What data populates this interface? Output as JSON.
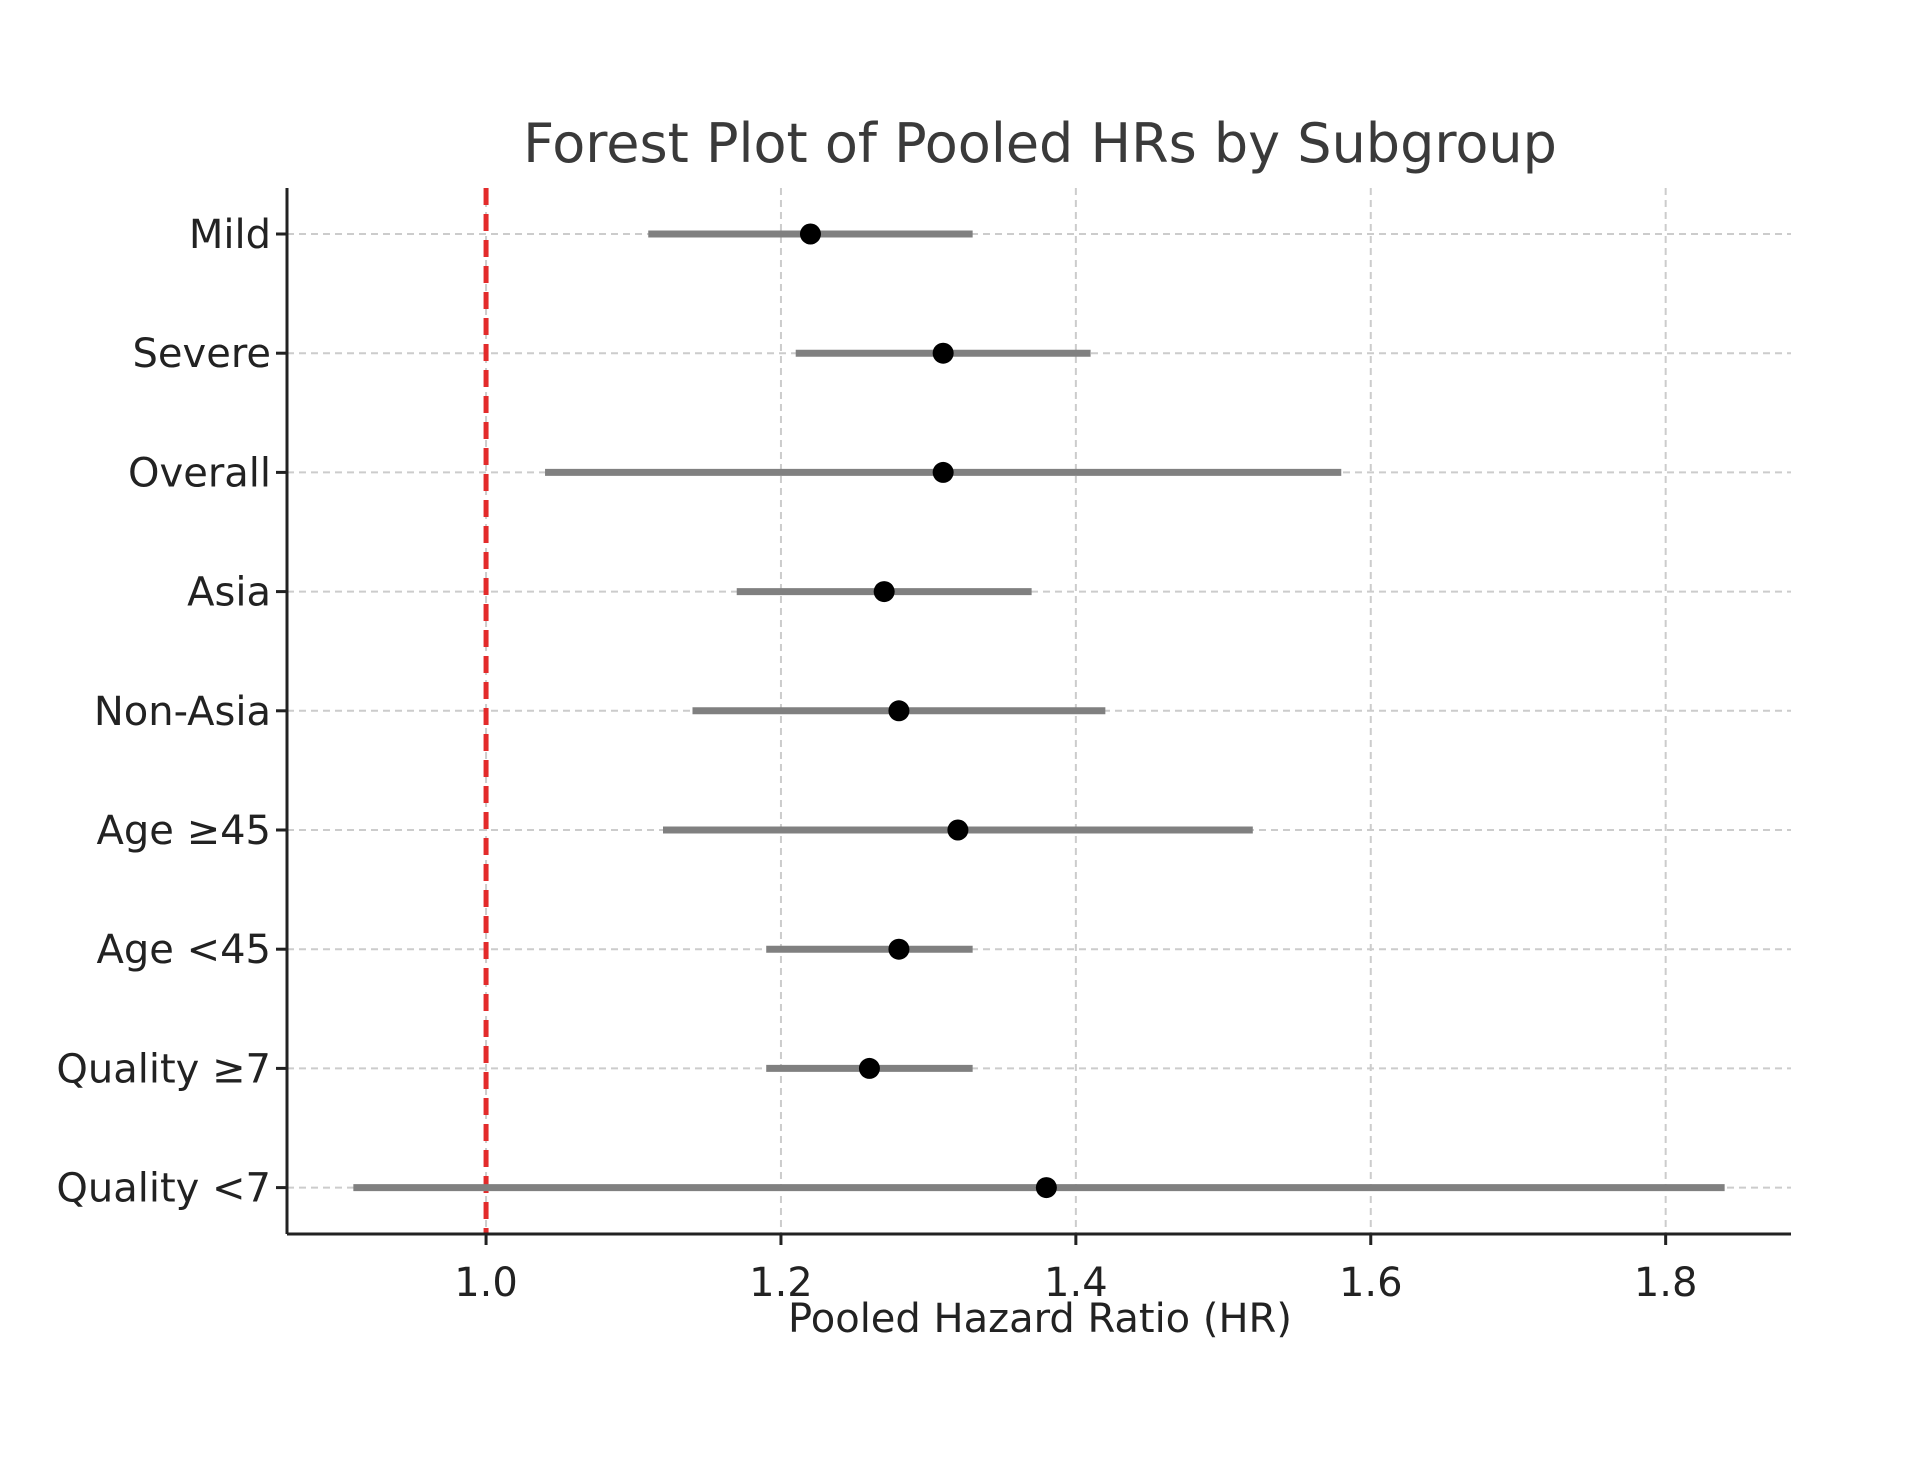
{
  "chart_data": {
    "type": "forest",
    "title": "Forest Plot of Pooled HRs by Subgroup",
    "xlabel": "Pooled Hazard Ratio (HR)",
    "ylabel": "",
    "xlim": [
      0.865,
      1.885
    ],
    "xticks": [
      1.0,
      1.2,
      1.4,
      1.6,
      1.8
    ],
    "xtick_labels": [
      "1.0",
      "1.2",
      "1.4",
      "1.6",
      "1.8"
    ],
    "grid": true,
    "reference_line": {
      "x": 1.0,
      "color": "#e32b2b",
      "style": "dashed"
    },
    "ci_color": "#808080",
    "point_color": "#000000",
    "subgroups": [
      {
        "label": "Mild",
        "hr": 1.22,
        "lower": 1.11,
        "upper": 1.33
      },
      {
        "label": "Severe",
        "hr": 1.31,
        "lower": 1.21,
        "upper": 1.41
      },
      {
        "label": "Overall",
        "hr": 1.31,
        "lower": 1.04,
        "upper": 1.58
      },
      {
        "label": "Asia",
        "hr": 1.27,
        "lower": 1.17,
        "upper": 1.37
      },
      {
        "label": "Non-Asia",
        "hr": 1.28,
        "lower": 1.14,
        "upper": 1.42
      },
      {
        "label": "Age ≥45",
        "hr": 1.32,
        "lower": 1.12,
        "upper": 1.52
      },
      {
        "label": "Age <45",
        "hr": 1.28,
        "lower": 1.19,
        "upper": 1.33
      },
      {
        "label": "Quality ≥7",
        "hr": 1.26,
        "lower": 1.19,
        "upper": 1.33
      },
      {
        "label": "Quality <7",
        "hr": 1.38,
        "lower": 0.91,
        "upper": 1.84
      }
    ]
  }
}
